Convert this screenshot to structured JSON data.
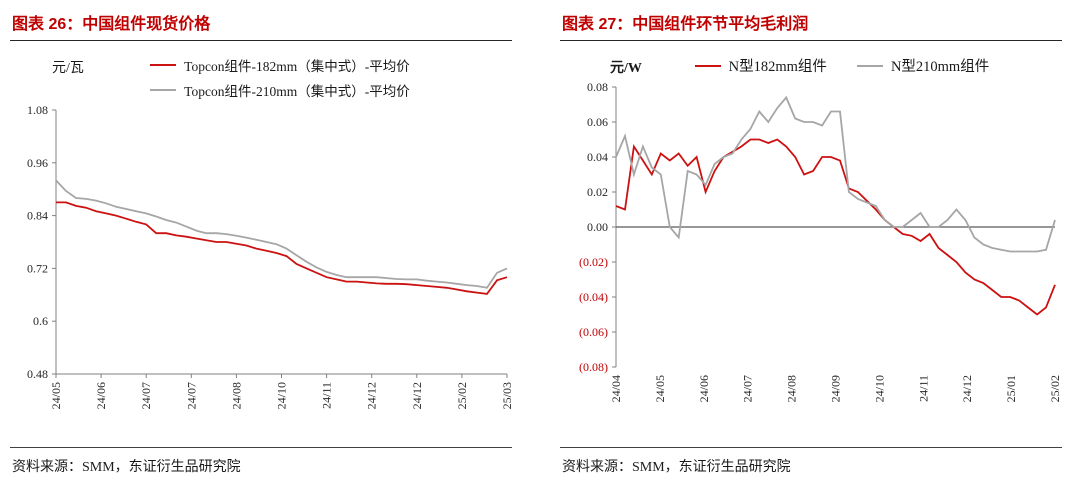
{
  "colors": {
    "title": "#c00000",
    "negative_tick": "#c00000",
    "axis": "#808080",
    "zero_line": "#595959",
    "series_red": "#cc1111",
    "series_gray": "#a6a6a6"
  },
  "panels": [
    {
      "title": "图表 26：中国组件现货价格",
      "unit": "元/瓦",
      "source": "资料来源：SMM，东证衍生品研究院"
    },
    {
      "title": "图表 27：中国组件环节平均毛利润",
      "unit": "元/W",
      "source": "资料来源：SMM，东证衍生品研究院"
    }
  ],
  "chart_data": [
    {
      "type": "line",
      "title": "中国组件现货价格",
      "xlabel": "",
      "ylabel": "元/瓦",
      "ylim": [
        0.48,
        1.08
      ],
      "grid": false,
      "legend_position": "top",
      "yticks": [
        1.08,
        0.96,
        0.84,
        0.72,
        0.6,
        0.48
      ],
      "ytick_labels": [
        "1.08",
        "0.96",
        "0.84",
        "0.72",
        "0.6",
        "0.48"
      ],
      "ytick_negative": [
        false,
        false,
        false,
        false,
        false,
        false
      ],
      "xtick_labels": [
        "24/05",
        "24/06",
        "24/07",
        "24/07",
        "24/08",
        "24/10",
        "24/11",
        "24/12",
        "24/12",
        "25/02",
        "25/03"
      ],
      "series": [
        {
          "name": "Topcon组件-182mm（集中式）-平均价",
          "color": "#cc1111",
          "values": [
            0.87,
            0.87,
            0.862,
            0.858,
            0.85,
            0.845,
            0.84,
            0.833,
            0.826,
            0.82,
            0.8,
            0.8,
            0.795,
            0.792,
            0.788,
            0.784,
            0.78,
            0.78,
            0.776,
            0.772,
            0.765,
            0.76,
            0.755,
            0.748,
            0.73,
            0.72,
            0.71,
            0.7,
            0.695,
            0.69,
            0.69,
            0.688,
            0.686,
            0.685,
            0.685,
            0.684,
            0.682,
            0.68,
            0.678,
            0.676,
            0.672,
            0.668,
            0.665,
            0.662,
            0.693,
            0.7
          ]
        },
        {
          "name": "Topcon组件-210mm（集中式）-平均价",
          "color": "#a6a6a6",
          "values": [
            0.92,
            0.896,
            0.88,
            0.878,
            0.874,
            0.868,
            0.86,
            0.855,
            0.85,
            0.845,
            0.838,
            0.83,
            0.824,
            0.815,
            0.806,
            0.8,
            0.8,
            0.798,
            0.794,
            0.79,
            0.785,
            0.78,
            0.775,
            0.765,
            0.75,
            0.735,
            0.722,
            0.712,
            0.705,
            0.7,
            0.7,
            0.7,
            0.7,
            0.698,
            0.696,
            0.695,
            0.695,
            0.692,
            0.69,
            0.688,
            0.685,
            0.682,
            0.68,
            0.676,
            0.71,
            0.72
          ]
        }
      ]
    },
    {
      "type": "line",
      "title": "中国组件环节平均毛利润",
      "xlabel": "",
      "ylabel": "元/W",
      "ylim": [
        -0.08,
        0.08
      ],
      "grid": false,
      "legend_position": "top",
      "zero_line": true,
      "yticks": [
        0.08,
        0.06,
        0.04,
        0.02,
        0,
        -0.02,
        -0.04,
        -0.06,
        -0.08
      ],
      "ytick_labels": [
        "0.08",
        "0.06",
        "0.04",
        "0.02",
        "0.00",
        "(0.02)",
        "(0.04)",
        "(0.06)",
        "(0.08)"
      ],
      "ytick_negative": [
        false,
        false,
        false,
        false,
        false,
        true,
        true,
        true,
        true
      ],
      "xtick_labels": [
        "24/04",
        "24/05",
        "24/06",
        "24/07",
        "24/08",
        "24/09",
        "24/10",
        "24/11",
        "24/12",
        "25/01",
        "25/02"
      ],
      "series": [
        {
          "name": "N型182mm组件",
          "color": "#cc1111",
          "values": [
            0.012,
            0.01,
            0.046,
            0.038,
            0.03,
            0.042,
            0.038,
            0.042,
            0.035,
            0.04,
            0.02,
            0.032,
            0.04,
            0.043,
            0.046,
            0.05,
            0.05,
            0.048,
            0.05,
            0.046,
            0.04,
            0.03,
            0.032,
            0.04,
            0.04,
            0.038,
            0.022,
            0.02,
            0.015,
            0.01,
            0.004,
            0.0,
            -0.004,
            -0.005,
            -0.008,
            -0.004,
            -0.012,
            -0.016,
            -0.02,
            -0.026,
            -0.03,
            -0.032,
            -0.036,
            -0.04,
            -0.04,
            -0.042,
            -0.046,
            -0.05,
            -0.046,
            -0.033
          ]
        },
        {
          "name": "N型210mm组件",
          "color": "#a6a6a6",
          "values": [
            0.04,
            0.052,
            0.03,
            0.046,
            0.034,
            0.03,
            0.0,
            -0.006,
            0.032,
            0.03,
            0.024,
            0.036,
            0.04,
            0.042,
            0.05,
            0.056,
            0.066,
            0.06,
            0.068,
            0.074,
            0.062,
            0.06,
            0.06,
            0.058,
            0.066,
            0.066,
            0.02,
            0.016,
            0.014,
            0.012,
            0.004,
            0.0,
            0.0,
            0.004,
            0.008,
            0.0,
            0.0,
            0.004,
            0.01,
            0.004,
            -0.006,
            -0.01,
            -0.012,
            -0.013,
            -0.014,
            -0.014,
            -0.014,
            -0.014,
            -0.013,
            0.004
          ]
        }
      ]
    }
  ]
}
